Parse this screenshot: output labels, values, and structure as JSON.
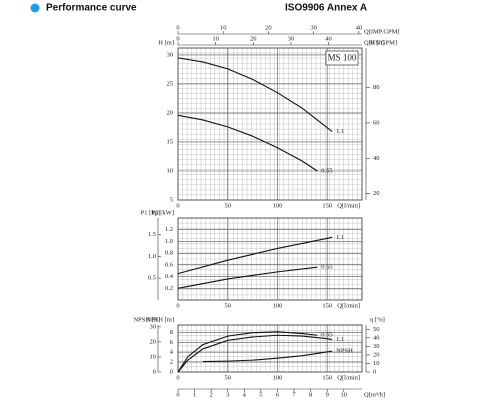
{
  "page_header": {
    "title": "Performance curve",
    "standard": "ISO9906 Annex A"
  },
  "chart_data": [
    {
      "type": "line",
      "model": "MS 100",
      "xlabel": "Q[l/min]",
      "xlim": [
        0,
        185
      ],
      "xticks": [
        0,
        50,
        100,
        150
      ],
      "ylabel": "H [m]",
      "ylim": [
        5,
        31.2
      ],
      "yticks": [
        5,
        10,
        15,
        20,
        25,
        30
      ],
      "y2label": "H [ft]",
      "y2lim": [
        16.4,
        102.4
      ],
      "y2ticks": [
        20,
        40,
        60,
        80
      ],
      "extra_x_axes": [
        {
          "label": "Q[IMP.GPM]",
          "side": "top",
          "lim": [
            0,
            40.7
          ],
          "ticks": [
            0,
            10,
            20,
            30,
            40
          ]
        },
        {
          "label": "Q[US.GPM]",
          "side": "top",
          "lim": [
            0,
            48.9
          ],
          "ticks": [
            0,
            10,
            20,
            30,
            40
          ]
        }
      ],
      "grid": true,
      "series": [
        {
          "name": "1.1",
          "color": "#111111",
          "x": [
            0,
            25,
            50,
            75,
            100,
            125,
            155
          ],
          "values": [
            29.5,
            28.8,
            27.6,
            25.8,
            23.5,
            20.8,
            16.8
          ]
        },
        {
          "name": "0.55",
          "color": "#111111",
          "x": [
            0,
            25,
            50,
            75,
            100,
            125,
            140
          ],
          "values": [
            19.6,
            18.8,
            17.6,
            16.0,
            14.0,
            11.7,
            10.0
          ]
        }
      ]
    },
    {
      "type": "line",
      "xlabel": "Q[l/min]",
      "xlim": [
        0,
        185
      ],
      "xticks": [
        0,
        50,
        100,
        150
      ],
      "ylabel": "P2 [kW]",
      "ylim": [
        0,
        1.4
      ],
      "yticks": [
        0.2,
        0.4,
        0.6,
        0.8,
        {
          "value": 1.0,
          "label": "1.0"
        },
        1.2
      ],
      "y3label": "P1 [hp]",
      "y3lim": [
        0,
        1.877
      ],
      "y3ticks": [
        0.5,
        {
          "value": 1.0,
          "label": "1.0"
        },
        1.5
      ],
      "grid": true,
      "series": [
        {
          "name": "1.1",
          "color": "#111111",
          "x": [
            0,
            50,
            100,
            155
          ],
          "values": [
            0.45,
            0.68,
            0.88,
            1.07
          ]
        },
        {
          "name": "0.55",
          "color": "#111111",
          "x": [
            0,
            50,
            100,
            140
          ],
          "values": [
            0.2,
            0.36,
            0.48,
            0.56
          ]
        }
      ]
    },
    {
      "type": "line",
      "xlabel": "Q[l/min]",
      "xlim": [
        0,
        185
      ],
      "xticks": [
        0,
        50,
        100,
        150
      ],
      "ylabel": "NPSH [m]",
      "ylim": [
        0,
        9.5
      ],
      "yticks": [
        0,
        2,
        4,
        6,
        8
      ],
      "y3label": "NPSH [ft]",
      "y3lim": [
        0,
        31.2
      ],
      "y3ticks": [
        0,
        10,
        20,
        30
      ],
      "y2label": "η [%]",
      "y2lim": [
        0,
        55
      ],
      "y2ticks": [
        0,
        10,
        20,
        30,
        40,
        50
      ],
      "extra_x_axes": [
        {
          "label": "Q[m³/h]",
          "side": "bottom",
          "lim": [
            0,
            11.1
          ],
          "ticks": [
            0,
            1,
            2,
            3,
            4,
            5,
            6,
            7,
            8,
            9,
            10
          ]
        }
      ],
      "grid": true,
      "series": [
        {
          "name": "0.55",
          "color": "#111111",
          "axis": "y2",
          "x": [
            0,
            10,
            25,
            50,
            75,
            100,
            125,
            140
          ],
          "values": [
            0,
            18,
            32,
            42,
            46,
            47,
            45,
            43
          ]
        },
        {
          "name": "1.1",
          "color": "#111111",
          "axis": "y2",
          "x": [
            0,
            10,
            25,
            50,
            75,
            100,
            125,
            150,
            155
          ],
          "values": [
            0,
            14,
            27,
            37,
            41,
            43,
            42,
            39,
            38
          ]
        },
        {
          "name": "NPSH",
          "color": "#111111",
          "x": [
            25,
            50,
            75,
            100,
            125,
            155
          ],
          "values": [
            2.1,
            2.2,
            2.4,
            2.8,
            3.3,
            4.2
          ]
        }
      ]
    }
  ]
}
